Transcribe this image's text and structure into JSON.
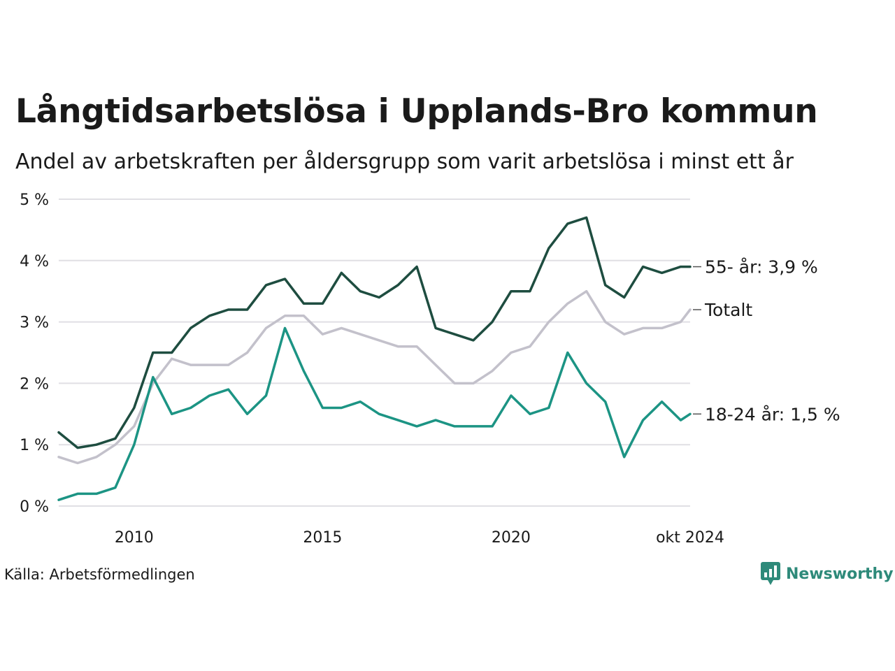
{
  "title": "Långtidsarbetslösa i Upplands-Bro kommun",
  "subtitle": "Andel av arbetskraften per åldersgrupp som varit arbetslösa i minst ett år",
  "source": "Källa: Arbetsförmedlingen",
  "logo": {
    "name": "Newsworthy",
    "icon": "newsworthy-logo-icon",
    "color": "#2e8a7a"
  },
  "chart_data": {
    "type": "line",
    "x_range": [
      2008.0,
      2024.75
    ],
    "ylim": [
      0,
      5
    ],
    "y_ticks": [
      0,
      1,
      2,
      3,
      4,
      5
    ],
    "y_tick_labels": [
      "0 %",
      "1 %",
      "2 %",
      "3 %",
      "4 %",
      "5 %"
    ],
    "x_ticks": [
      2010,
      2015,
      2020,
      2024.75
    ],
    "x_tick_labels": [
      "2010",
      "2015",
      "2020",
      "okt 2024"
    ],
    "grid": true,
    "series": [
      {
        "name": "Totalt",
        "end_label": "Totalt",
        "color": "#c3c1cb",
        "x": [
          2008.0,
          2008.5,
          2009.0,
          2009.5,
          2010.0,
          2010.5,
          2011.0,
          2011.5,
          2012.0,
          2012.5,
          2013.0,
          2013.5,
          2014.0,
          2014.5,
          2015.0,
          2015.5,
          2016.0,
          2016.5,
          2017.0,
          2017.5,
          2018.0,
          2018.5,
          2019.0,
          2019.5,
          2020.0,
          2020.5,
          2021.0,
          2021.5,
          2022.0,
          2022.5,
          2023.0,
          2023.5,
          2024.0,
          2024.5,
          2024.75
        ],
        "values": [
          0.8,
          0.7,
          0.8,
          1.0,
          1.3,
          2.0,
          2.4,
          2.3,
          2.3,
          2.3,
          2.5,
          2.9,
          3.1,
          3.1,
          2.8,
          2.9,
          2.8,
          2.7,
          2.6,
          2.6,
          2.3,
          2.0,
          2.0,
          2.2,
          2.5,
          2.6,
          3.0,
          3.3,
          3.5,
          3.0,
          2.8,
          2.9,
          2.9,
          3.0,
          3.2
        ]
      },
      {
        "name": "55- år",
        "end_label": "55- år: 3,9 %",
        "color": "#1e4d40",
        "x": [
          2008.0,
          2008.5,
          2009.0,
          2009.5,
          2010.0,
          2010.5,
          2011.0,
          2011.5,
          2012.0,
          2012.5,
          2013.0,
          2013.5,
          2014.0,
          2014.5,
          2015.0,
          2015.5,
          2016.0,
          2016.5,
          2017.0,
          2017.5,
          2018.0,
          2018.5,
          2019.0,
          2019.5,
          2020.0,
          2020.5,
          2021.0,
          2021.5,
          2022.0,
          2022.5,
          2023.0,
          2023.5,
          2024.0,
          2024.5,
          2024.75
        ],
        "values": [
          1.2,
          0.95,
          1.0,
          1.1,
          1.6,
          2.5,
          2.5,
          2.9,
          3.1,
          3.2,
          3.2,
          3.6,
          3.7,
          3.3,
          3.3,
          3.8,
          3.5,
          3.4,
          3.6,
          3.9,
          2.9,
          2.8,
          2.7,
          3.0,
          3.5,
          3.5,
          4.2,
          4.6,
          4.7,
          3.6,
          3.4,
          3.9,
          3.8,
          3.9,
          3.9
        ]
      },
      {
        "name": "18-24 år",
        "end_label": "18-24 år: 1,5 %",
        "color": "#1c9484",
        "x": [
          2008.0,
          2008.5,
          2009.0,
          2009.5,
          2010.0,
          2010.5,
          2011.0,
          2011.5,
          2012.0,
          2012.5,
          2013.0,
          2013.5,
          2014.0,
          2014.5,
          2015.0,
          2015.5,
          2016.0,
          2016.5,
          2017.0,
          2017.5,
          2018.0,
          2018.5,
          2019.0,
          2019.5,
          2020.0,
          2020.5,
          2021.0,
          2021.5,
          2022.0,
          2022.5,
          2023.0,
          2023.5,
          2024.0,
          2024.5,
          2024.75
        ],
        "values": [
          0.1,
          0.2,
          0.2,
          0.3,
          1.0,
          2.1,
          1.5,
          1.6,
          1.8,
          1.9,
          1.5,
          1.8,
          2.9,
          2.2,
          1.6,
          1.6,
          1.7,
          1.5,
          1.4,
          1.3,
          1.4,
          1.3,
          1.3,
          1.3,
          1.8,
          1.5,
          1.6,
          2.5,
          2.0,
          1.7,
          0.8,
          1.4,
          1.7,
          1.4,
          1.5
        ]
      }
    ]
  }
}
